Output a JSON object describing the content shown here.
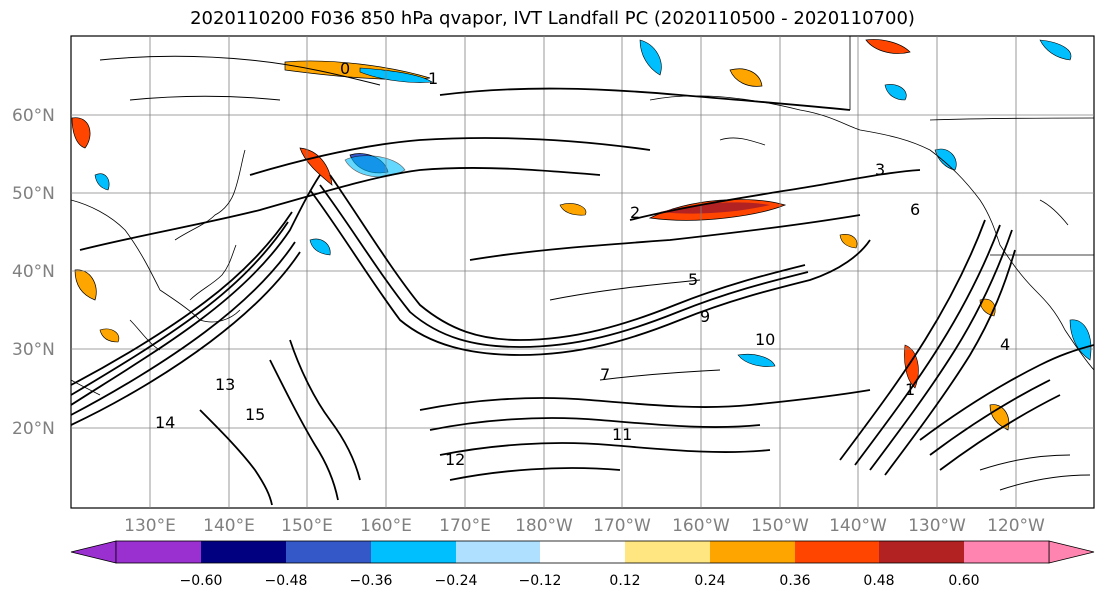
{
  "title": "2020110200 F036 850 hPa qvapor, IVT Landfall PC (2020110500 - 2020110700)",
  "lat_labels": [
    "60°N",
    "50°N",
    "40°N",
    "30°N",
    "20°N"
  ],
  "lon_labels": [
    "130°E",
    "140°E",
    "150°E",
    "160°E",
    "170°E",
    "180°W",
    "170°W",
    "160°W",
    "150°W",
    "140°W",
    "130°W",
    "120°W"
  ],
  "colorbar": {
    "colors": [
      "#9b30d0",
      "#000080",
      "#3558c8",
      "#00bfff",
      "#b0e0ff",
      "#ffffff",
      "#ffe680",
      "#ffa500",
      "#ff4500",
      "#b22222",
      "#ff85b0"
    ],
    "ticks": [
      "−0.60",
      "−0.48",
      "−0.36",
      "−0.24",
      "−0.12",
      "0.12",
      "0.24",
      "0.36",
      "0.48",
      "0.60"
    ]
  },
  "contour_labels": [
    "0",
    "1",
    "2",
    "5",
    "9",
    "10",
    "13",
    "14",
    "11",
    "12",
    "15",
    "7",
    "6",
    "3",
    "4",
    "1"
  ],
  "colors": {
    "gridline": "#808080",
    "contour": "#000000",
    "coast": "#000000"
  }
}
